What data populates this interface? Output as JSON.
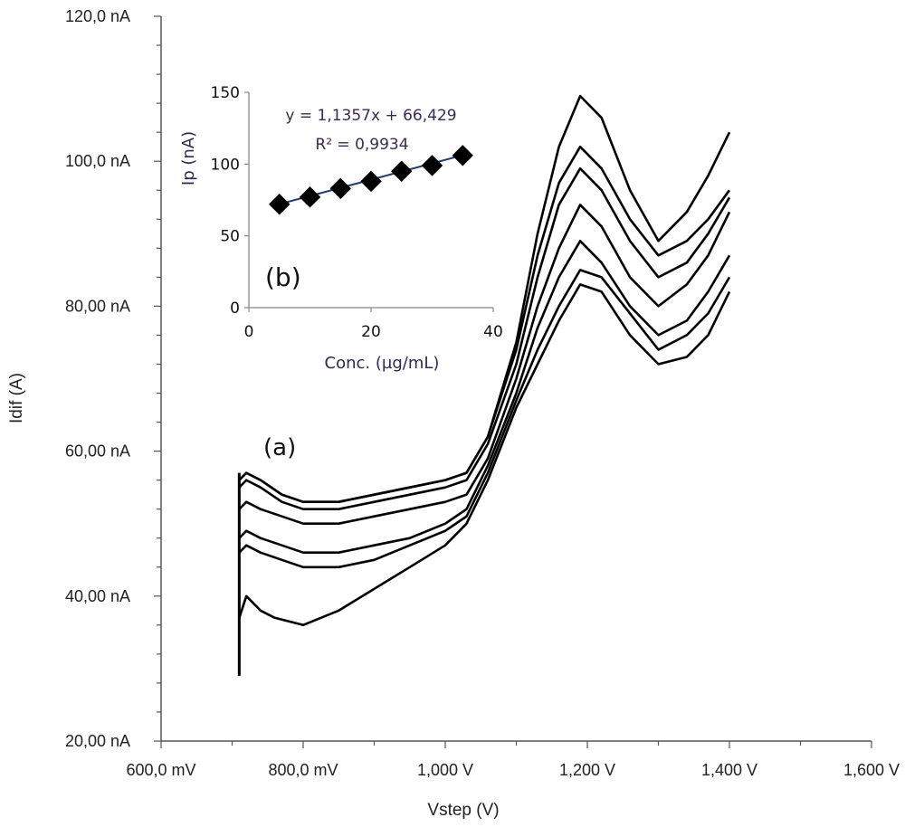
{
  "chart_data": [
    {
      "panel": "(a)",
      "type": "line",
      "xlabel": "Vstep (V)",
      "ylabel": "Idif (A)",
      "xlim": [
        0.6,
        1.6
      ],
      "ylim": [
        20,
        120
      ],
      "x_ticks": [
        {
          "value": 0.6,
          "label": "600,0 mV"
        },
        {
          "value": 0.8,
          "label": "800,0 mV"
        },
        {
          "value": 1.0,
          "label": "1,000 V"
        },
        {
          "value": 1.2,
          "label": "1,200 V"
        },
        {
          "value": 1.4,
          "label": "1,400 V"
        },
        {
          "value": 1.6,
          "label": "1,600 V"
        }
      ],
      "y_ticks": [
        {
          "value": 20,
          "label": "20,00 nA"
        },
        {
          "value": 40,
          "label": "40,00 nA"
        },
        {
          "value": 60,
          "label": "60,00 nA"
        },
        {
          "value": 80,
          "label": "80,00 nA"
        },
        {
          "value": 100,
          "label": "100,0 nA"
        },
        {
          "value": 120,
          "label": "120,0 nA"
        }
      ],
      "series_color": "#000000",
      "series": [
        {
          "x": [
            0.71,
            0.72,
            0.74,
            0.76,
            0.8,
            0.85,
            0.9,
            0.95,
            1.0,
            1.03,
            1.06,
            1.1,
            1.13,
            1.16,
            1.19,
            1.22,
            1.26,
            1.3,
            1.34,
            1.37,
            1.4
          ],
          "y": [
            37,
            40,
            38,
            37,
            36,
            38,
            41,
            44,
            47,
            50,
            56,
            66,
            72,
            78,
            83,
            82,
            76,
            72,
            73,
            76,
            82
          ]
        },
        {
          "x": [
            0.71,
            0.72,
            0.74,
            0.77,
            0.8,
            0.85,
            0.9,
            0.95,
            1.0,
            1.03,
            1.06,
            1.1,
            1.13,
            1.16,
            1.19,
            1.22,
            1.26,
            1.3,
            1.34,
            1.37,
            1.4
          ],
          "y": [
            46,
            47,
            46,
            45,
            44,
            44,
            45,
            47,
            49,
            51,
            57,
            67,
            74,
            80,
            85,
            84,
            79,
            74,
            76,
            79,
            84
          ]
        },
        {
          "x": [
            0.71,
            0.72,
            0.74,
            0.77,
            0.8,
            0.85,
            0.9,
            0.95,
            1.0,
            1.03,
            1.06,
            1.1,
            1.13,
            1.16,
            1.19,
            1.22,
            1.26,
            1.3,
            1.34,
            1.37,
            1.4
          ],
          "y": [
            48,
            49,
            48,
            47,
            46,
            46,
            47,
            48,
            50,
            52,
            58,
            68,
            77,
            84,
            89,
            86,
            80,
            76,
            78,
            82,
            87
          ]
        },
        {
          "x": [
            0.71,
            0.72,
            0.74,
            0.77,
            0.8,
            0.85,
            0.9,
            0.95,
            1.0,
            1.03,
            1.06,
            1.1,
            1.13,
            1.16,
            1.19,
            1.22,
            1.26,
            1.3,
            1.34,
            1.37,
            1.4
          ],
          "y": [
            52,
            53,
            52,
            51,
            50,
            50,
            51,
            52,
            53,
            54,
            59,
            70,
            80,
            88,
            94,
            91,
            84,
            80,
            83,
            87,
            93
          ]
        },
        {
          "x": [
            0.71,
            0.72,
            0.74,
            0.77,
            0.8,
            0.85,
            0.9,
            0.95,
            1.0,
            1.03,
            1.06,
            1.1,
            1.13,
            1.16,
            1.19,
            1.22,
            1.26,
            1.3,
            1.34,
            1.37,
            1.4
          ],
          "y": [
            55,
            56,
            55,
            53,
            52,
            52,
            53,
            54,
            55,
            56,
            61,
            72,
            84,
            94,
            99,
            96,
            89,
            84,
            86,
            90,
            95
          ]
        },
        {
          "x": [
            0.71,
            0.72,
            0.74,
            0.77,
            0.8,
            0.85,
            0.9,
            0.95,
            1.0,
            1.03,
            1.06,
            1.1,
            1.13,
            1.16,
            1.19,
            1.22,
            1.26,
            1.3,
            1.34,
            1.37,
            1.4
          ],
          "y": [
            56,
            57,
            56,
            54,
            53,
            53,
            54,
            55,
            56,
            57,
            62,
            74,
            87,
            97,
            102,
            99,
            92,
            87,
            89,
            92,
            96
          ]
        },
        {
          "x": [
            0.71,
            0.72,
            0.74,
            0.77,
            0.8,
            0.85,
            0.9,
            0.95,
            1.0,
            1.03,
            1.06,
            1.1,
            1.13,
            1.16,
            1.19,
            1.22,
            1.26,
            1.3,
            1.34,
            1.37,
            1.4
          ],
          "y": [
            56,
            57,
            56,
            54,
            53,
            53,
            54,
            55,
            56,
            57,
            62,
            75,
            90,
            102,
            109,
            106,
            96,
            89,
            93,
            98,
            104
          ]
        }
      ]
    },
    {
      "panel": "(b)",
      "type": "scatter",
      "xlabel": "Conc. (µg/mL)",
      "ylabel": "Ip (nA)",
      "xlim": [
        0,
        40
      ],
      "ylim": [
        0,
        150
      ],
      "x_ticks": [
        "0",
        "20",
        "40"
      ],
      "y_ticks": [
        "0",
        "50",
        "100",
        "150"
      ],
      "equation": "y = 1,1357x + 66,429",
      "r_squared": "R² = 0,9934",
      "marker": "diamond",
      "x": [
        5,
        10,
        15,
        20,
        25,
        30,
        35
      ],
      "y": [
        72,
        77,
        83,
        88,
        95,
        99,
        106
      ],
      "trendline": {
        "slope": 1.1357,
        "intercept": 66.429
      }
    }
  ]
}
